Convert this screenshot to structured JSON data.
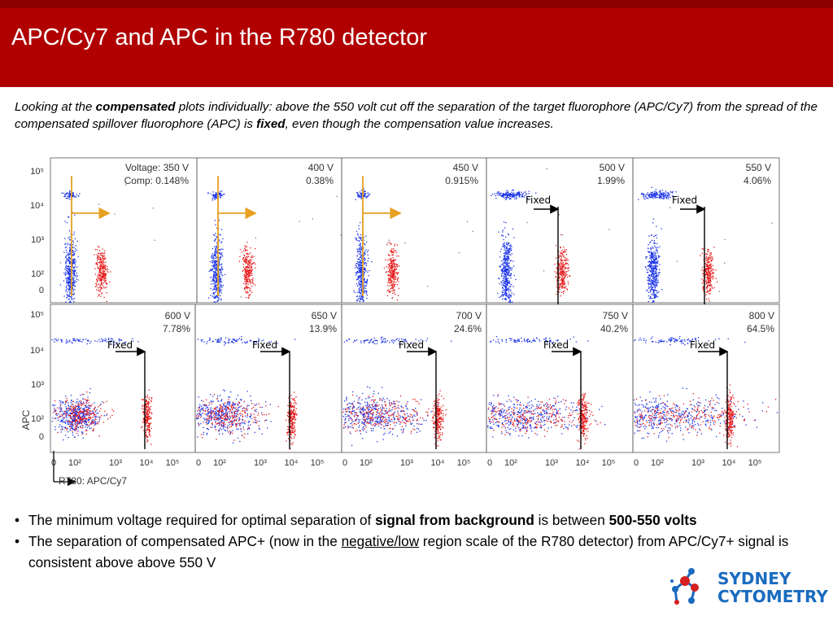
{
  "header": {
    "title": "APC/Cy7 and APC in the R780 detector"
  },
  "intro": {
    "p1": "Looking at the ",
    "b1": "compensated",
    "p2": " plots individually: above the 550 volt cut off the separation of the target fluorophore (APC/Cy7) from the spread of the compensated spillover fluorophore (APC) is ",
    "b2": "fixed",
    "p3": ", even though the compensation value increases."
  },
  "figure": {
    "y_axis_label": "APC",
    "x_axis_label": "R780: APC/Cy7",
    "fixed_label": "Fixed",
    "y_ticks_top": [
      "10⁵",
      "10⁴",
      "10³",
      "10²",
      "0"
    ],
    "y_ticks_bottom": [
      "10⁵",
      "10⁴",
      "10³",
      "10²",
      "0"
    ],
    "x_ticks": [
      "0",
      "10²",
      "10³",
      "10⁴",
      "10⁵"
    ],
    "panels": [
      {
        "voltage": "Voltage: 350 V",
        "comp": "Comp: 0.148%"
      },
      {
        "voltage": "400 V",
        "comp": "0.38%"
      },
      {
        "voltage": "450 V",
        "comp": "0.915%"
      },
      {
        "voltage": "500 V",
        "comp": "1.99%"
      },
      {
        "voltage": "550 V",
        "comp": "4.06%"
      },
      {
        "voltage": "600 V",
        "comp": "7.78%"
      },
      {
        "voltage": "650 V",
        "comp": "13.9%"
      },
      {
        "voltage": "700 V",
        "comp": "24.6%"
      },
      {
        "voltage": "750 V",
        "comp": "40.2%"
      },
      {
        "voltage": "800 V",
        "comp": "64.5%"
      }
    ],
    "colors": {
      "apc_population": "#1a33e6",
      "apc_cy7_population": "#e61a1a",
      "arrow_orange": "#e8a020",
      "arrow_black": "#000000"
    }
  },
  "bullets": {
    "b1_pre": "The minimum voltage required for optimal separation of ",
    "b1_bold": "signal from background",
    "b1_mid": " is between ",
    "b1_bold2": "500-550 volts",
    "b2_pre": "The separation of compensated APC+ (now in the ",
    "b2_ul": "negative/low",
    "b2_post": " region scale of the R780 detector) from APC/Cy7+ signal is consistent above above 550 V"
  },
  "logo": {
    "line1": "SYDNEY",
    "line2": "CYTOMETRY"
  }
}
